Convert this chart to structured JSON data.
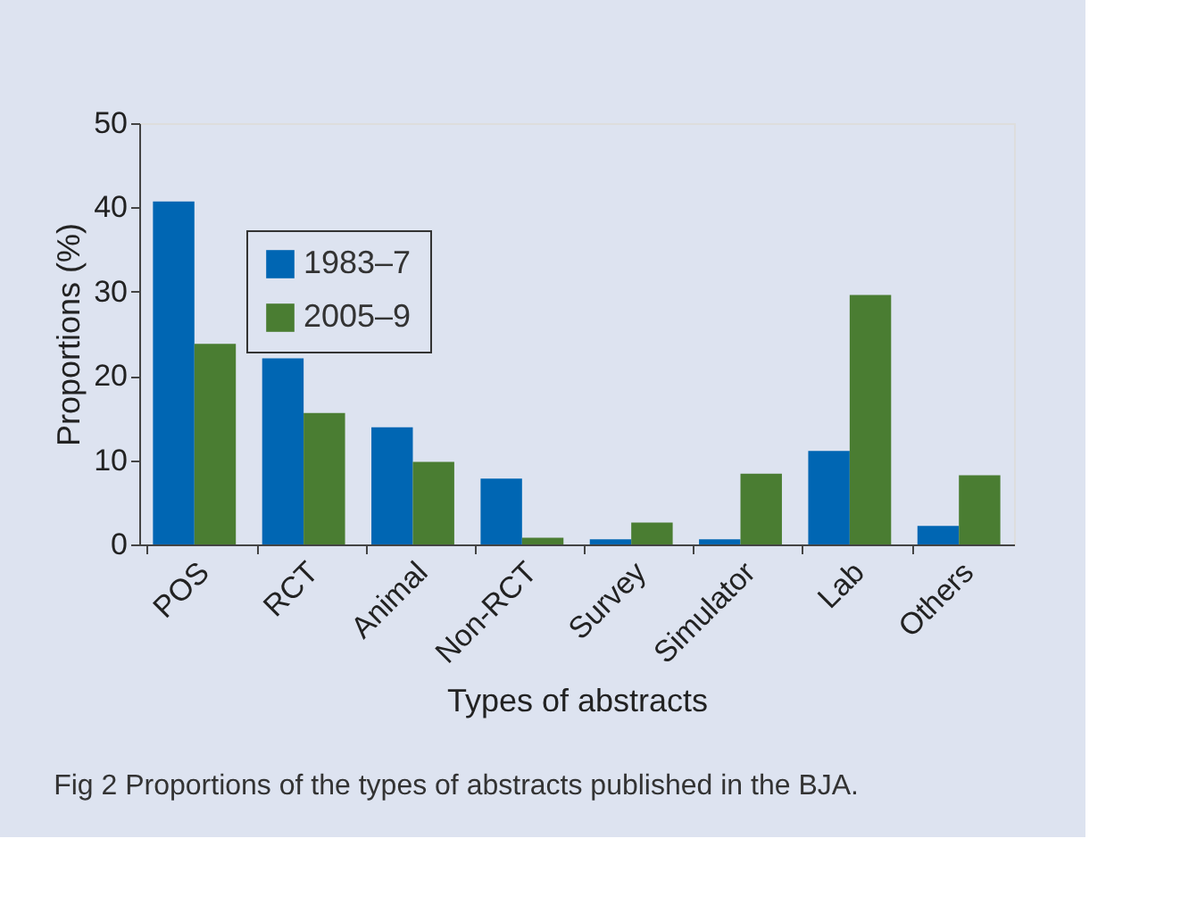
{
  "chart_data": {
    "type": "bar",
    "xlabel": "Types of abstracts",
    "ylabel": "Proportions (%)",
    "categories": [
      "POS",
      "RCT",
      "Animal",
      "Non-RCT",
      "Survey",
      "Simulator",
      "Lab",
      "Others"
    ],
    "series": [
      {
        "name": "1983–7",
        "color": "#0066b3",
        "values": [
          40.7,
          22.1,
          13.9,
          7.8,
          0.6,
          0.6,
          11.1,
          2.2
        ]
      },
      {
        "name": "2005–9",
        "color": "#4a7d32",
        "values": [
          23.8,
          15.6,
          9.8,
          0.8,
          2.6,
          8.4,
          29.6,
          8.2
        ]
      }
    ],
    "ylim": [
      0,
      50
    ],
    "yticks": [
      0,
      10,
      20,
      30,
      40,
      50
    ],
    "grid": false,
    "legend": "top left",
    "annotations": [
      "Fig 2  Proportions of the types of abstracts published in the BJA."
    ]
  }
}
